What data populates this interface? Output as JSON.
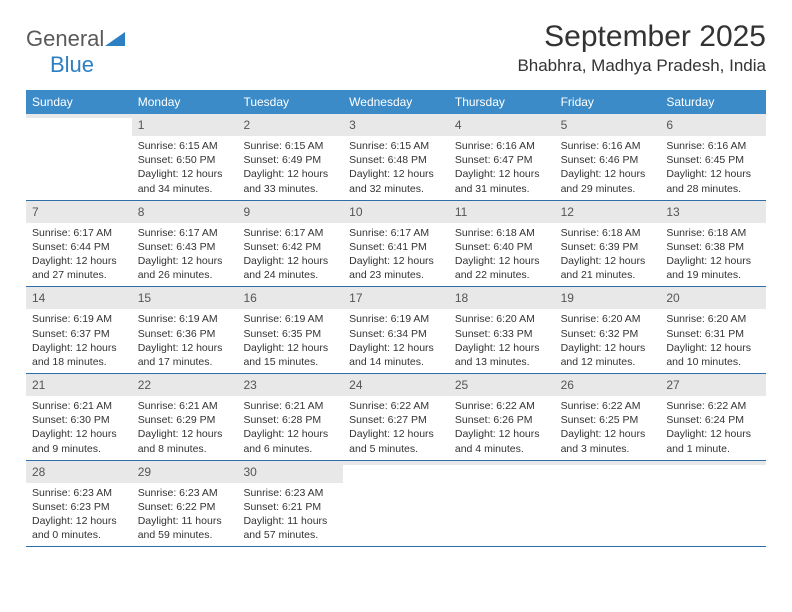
{
  "logo": {
    "text1": "General",
    "text2": "Blue"
  },
  "colors": {
    "header_bg": "#3b8bc9",
    "header_text": "#ffffff",
    "rule": "#2d6da8",
    "daynum_bg": "#e8e8e8",
    "logo_gray": "#5a5a5a",
    "logo_blue": "#2d7fc4"
  },
  "title": "September 2025",
  "location": "Bhabhra, Madhya Pradesh, India",
  "weekdays": [
    "Sunday",
    "Monday",
    "Tuesday",
    "Wednesday",
    "Thursday",
    "Friday",
    "Saturday"
  ],
  "weeks": [
    [
      {
        "n": "",
        "sr": "",
        "ss": "",
        "dl": ""
      },
      {
        "n": "1",
        "sr": "Sunrise: 6:15 AM",
        "ss": "Sunset: 6:50 PM",
        "dl": "Daylight: 12 hours and 34 minutes."
      },
      {
        "n": "2",
        "sr": "Sunrise: 6:15 AM",
        "ss": "Sunset: 6:49 PM",
        "dl": "Daylight: 12 hours and 33 minutes."
      },
      {
        "n": "3",
        "sr": "Sunrise: 6:15 AM",
        "ss": "Sunset: 6:48 PM",
        "dl": "Daylight: 12 hours and 32 minutes."
      },
      {
        "n": "4",
        "sr": "Sunrise: 6:16 AM",
        "ss": "Sunset: 6:47 PM",
        "dl": "Daylight: 12 hours and 31 minutes."
      },
      {
        "n": "5",
        "sr": "Sunrise: 6:16 AM",
        "ss": "Sunset: 6:46 PM",
        "dl": "Daylight: 12 hours and 29 minutes."
      },
      {
        "n": "6",
        "sr": "Sunrise: 6:16 AM",
        "ss": "Sunset: 6:45 PM",
        "dl": "Daylight: 12 hours and 28 minutes."
      }
    ],
    [
      {
        "n": "7",
        "sr": "Sunrise: 6:17 AM",
        "ss": "Sunset: 6:44 PM",
        "dl": "Daylight: 12 hours and 27 minutes."
      },
      {
        "n": "8",
        "sr": "Sunrise: 6:17 AM",
        "ss": "Sunset: 6:43 PM",
        "dl": "Daylight: 12 hours and 26 minutes."
      },
      {
        "n": "9",
        "sr": "Sunrise: 6:17 AM",
        "ss": "Sunset: 6:42 PM",
        "dl": "Daylight: 12 hours and 24 minutes."
      },
      {
        "n": "10",
        "sr": "Sunrise: 6:17 AM",
        "ss": "Sunset: 6:41 PM",
        "dl": "Daylight: 12 hours and 23 minutes."
      },
      {
        "n": "11",
        "sr": "Sunrise: 6:18 AM",
        "ss": "Sunset: 6:40 PM",
        "dl": "Daylight: 12 hours and 22 minutes."
      },
      {
        "n": "12",
        "sr": "Sunrise: 6:18 AM",
        "ss": "Sunset: 6:39 PM",
        "dl": "Daylight: 12 hours and 21 minutes."
      },
      {
        "n": "13",
        "sr": "Sunrise: 6:18 AM",
        "ss": "Sunset: 6:38 PM",
        "dl": "Daylight: 12 hours and 19 minutes."
      }
    ],
    [
      {
        "n": "14",
        "sr": "Sunrise: 6:19 AM",
        "ss": "Sunset: 6:37 PM",
        "dl": "Daylight: 12 hours and 18 minutes."
      },
      {
        "n": "15",
        "sr": "Sunrise: 6:19 AM",
        "ss": "Sunset: 6:36 PM",
        "dl": "Daylight: 12 hours and 17 minutes."
      },
      {
        "n": "16",
        "sr": "Sunrise: 6:19 AM",
        "ss": "Sunset: 6:35 PM",
        "dl": "Daylight: 12 hours and 15 minutes."
      },
      {
        "n": "17",
        "sr": "Sunrise: 6:19 AM",
        "ss": "Sunset: 6:34 PM",
        "dl": "Daylight: 12 hours and 14 minutes."
      },
      {
        "n": "18",
        "sr": "Sunrise: 6:20 AM",
        "ss": "Sunset: 6:33 PM",
        "dl": "Daylight: 12 hours and 13 minutes."
      },
      {
        "n": "19",
        "sr": "Sunrise: 6:20 AM",
        "ss": "Sunset: 6:32 PM",
        "dl": "Daylight: 12 hours and 12 minutes."
      },
      {
        "n": "20",
        "sr": "Sunrise: 6:20 AM",
        "ss": "Sunset: 6:31 PM",
        "dl": "Daylight: 12 hours and 10 minutes."
      }
    ],
    [
      {
        "n": "21",
        "sr": "Sunrise: 6:21 AM",
        "ss": "Sunset: 6:30 PM",
        "dl": "Daylight: 12 hours and 9 minutes."
      },
      {
        "n": "22",
        "sr": "Sunrise: 6:21 AM",
        "ss": "Sunset: 6:29 PM",
        "dl": "Daylight: 12 hours and 8 minutes."
      },
      {
        "n": "23",
        "sr": "Sunrise: 6:21 AM",
        "ss": "Sunset: 6:28 PM",
        "dl": "Daylight: 12 hours and 6 minutes."
      },
      {
        "n": "24",
        "sr": "Sunrise: 6:22 AM",
        "ss": "Sunset: 6:27 PM",
        "dl": "Daylight: 12 hours and 5 minutes."
      },
      {
        "n": "25",
        "sr": "Sunrise: 6:22 AM",
        "ss": "Sunset: 6:26 PM",
        "dl": "Daylight: 12 hours and 4 minutes."
      },
      {
        "n": "26",
        "sr": "Sunrise: 6:22 AM",
        "ss": "Sunset: 6:25 PM",
        "dl": "Daylight: 12 hours and 3 minutes."
      },
      {
        "n": "27",
        "sr": "Sunrise: 6:22 AM",
        "ss": "Sunset: 6:24 PM",
        "dl": "Daylight: 12 hours and 1 minute."
      }
    ],
    [
      {
        "n": "28",
        "sr": "Sunrise: 6:23 AM",
        "ss": "Sunset: 6:23 PM",
        "dl": "Daylight: 12 hours and 0 minutes."
      },
      {
        "n": "29",
        "sr": "Sunrise: 6:23 AM",
        "ss": "Sunset: 6:22 PM",
        "dl": "Daylight: 11 hours and 59 minutes."
      },
      {
        "n": "30",
        "sr": "Sunrise: 6:23 AM",
        "ss": "Sunset: 6:21 PM",
        "dl": "Daylight: 11 hours and 57 minutes."
      },
      {
        "n": "",
        "sr": "",
        "ss": "",
        "dl": ""
      },
      {
        "n": "",
        "sr": "",
        "ss": "",
        "dl": ""
      },
      {
        "n": "",
        "sr": "",
        "ss": "",
        "dl": ""
      },
      {
        "n": "",
        "sr": "",
        "ss": "",
        "dl": ""
      }
    ]
  ]
}
